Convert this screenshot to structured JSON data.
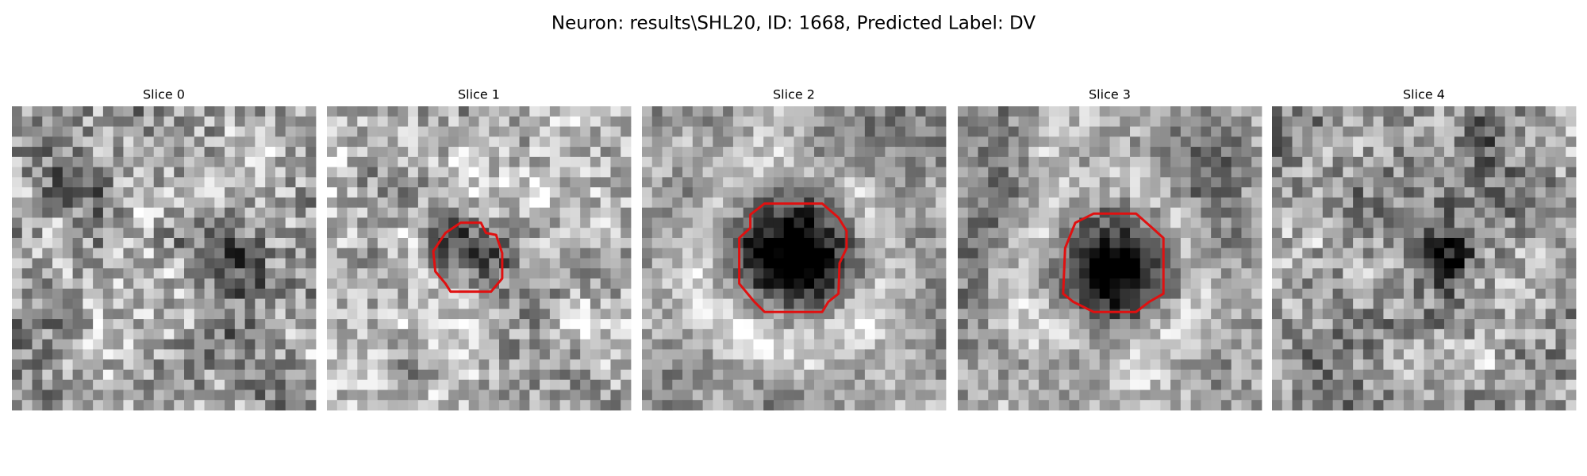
{
  "title": "Neuron: results\\SHL20, ID: 1668, Predicted Label: DV",
  "panels": [
    {
      "title": "Slice 0"
    },
    {
      "title": "Slice 1"
    },
    {
      "title": "Slice 2"
    },
    {
      "title": "Slice 3"
    },
    {
      "title": "Slice 4"
    }
  ]
}
